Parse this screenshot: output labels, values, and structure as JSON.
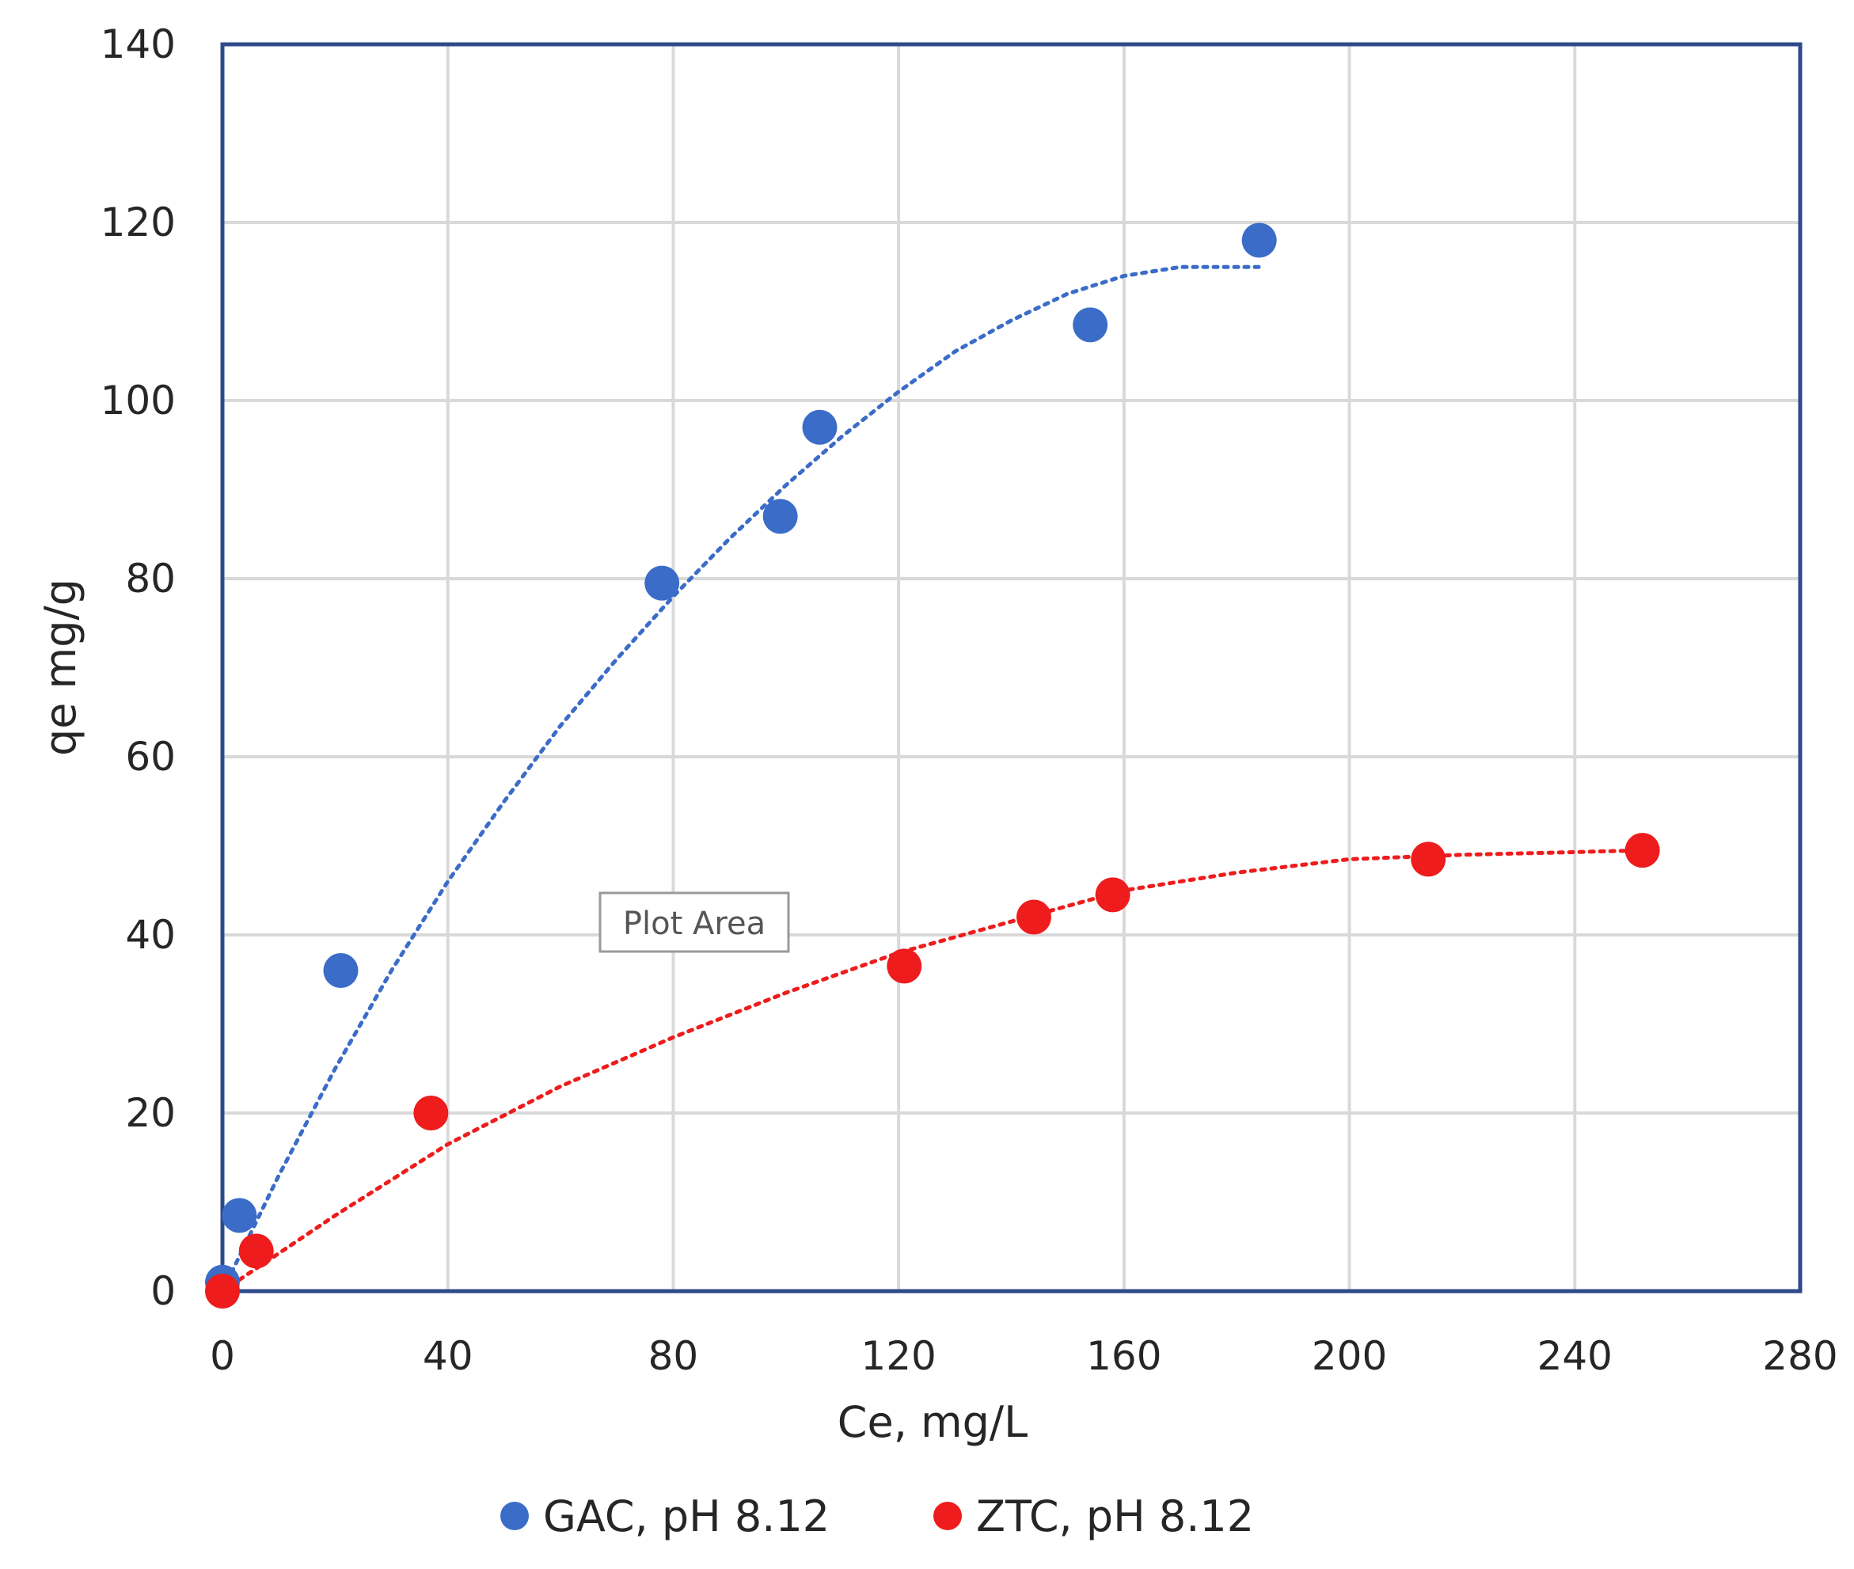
{
  "chart_data": {
    "type": "scatter",
    "title": "",
    "xlabel": "Ce, mg/L",
    "ylabel": "qe mg/g",
    "xlim": [
      0,
      280
    ],
    "ylim": [
      0,
      140
    ],
    "x_ticks": [
      0,
      40,
      80,
      120,
      160,
      200,
      240,
      280
    ],
    "y_ticks": [
      0,
      20,
      40,
      60,
      80,
      100,
      120,
      140
    ],
    "grid": true,
    "legend_position": "bottom",
    "series": [
      {
        "name": "GAC, pH 8.12",
        "color": "#3B6CC8",
        "x": [
          0,
          3,
          21,
          78,
          99,
          106,
          154,
          184
        ],
        "y": [
          1,
          8.5,
          36,
          79.5,
          87,
          97,
          108.5,
          118
        ],
        "trendline": {
          "style": "dotted",
          "x": [
            0,
            10,
            20,
            30,
            40,
            50,
            60,
            70,
            80,
            90,
            100,
            110,
            120,
            130,
            140,
            150,
            160,
            170,
            184
          ],
          "y": [
            0,
            13,
            25,
            36,
            46,
            55,
            63.5,
            71,
            78,
            84.5,
            90.5,
            96,
            101,
            105.5,
            109,
            112,
            114,
            115,
            115
          ]
        }
      },
      {
        "name": "ZTC, pH 8.12",
        "color": "#EE1C1C",
        "x": [
          0,
          6,
          37,
          121,
          144,
          158,
          214,
          252
        ],
        "y": [
          0,
          4.5,
          20,
          36.5,
          42,
          44.5,
          48.5,
          49.5
        ],
        "trendline": {
          "style": "dotted",
          "x": [
            0,
            20,
            40,
            60,
            80,
            100,
            120,
            140,
            160,
            180,
            200,
            220,
            240,
            252
          ],
          "y": [
            0,
            8.5,
            16.5,
            23,
            28.5,
            33.5,
            38,
            41.5,
            45,
            47,
            48.5,
            49,
            49.3,
            49.5
          ]
        }
      }
    ],
    "annotations": [
      {
        "text": "Plot Area",
        "kind": "tooltip"
      }
    ]
  }
}
